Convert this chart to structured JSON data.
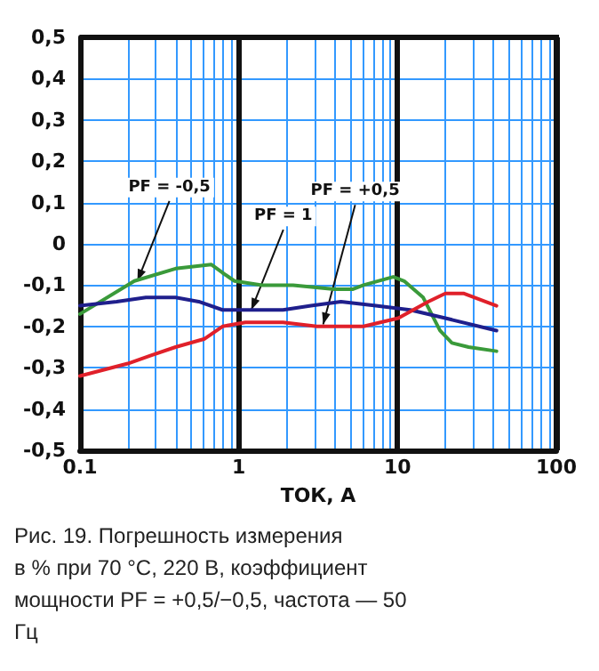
{
  "chart_data": {
    "type": "line",
    "xlabel": "ТОК, А",
    "log": "x",
    "grid": true,
    "marker": "none",
    "line_style": "solid",
    "xlim": [
      0.1,
      100
    ],
    "xticks": [
      0.1,
      1,
      10,
      100
    ],
    "ylim": [
      -0.5,
      0.5
    ],
    "yticks": [
      {
        "value": -0.5,
        "label": "-0,5"
      },
      {
        "value": -0.4,
        "label": "-0,4"
      },
      {
        "value": -0.3,
        "label": "-0,3"
      },
      {
        "value": -0.2,
        "label": "-0,2"
      },
      {
        "value": -0.1,
        "label": "-0,1"
      },
      0,
      {
        "value": 0.1,
        "label": "0,1"
      },
      {
        "value": 0.2,
        "label": "0,2"
      },
      {
        "value": 0.3,
        "label": "0,3"
      },
      {
        "value": 0.4,
        "label": "0,4"
      },
      {
        "value": 0.5,
        "label": "0,5"
      }
    ],
    "series": [
      {
        "color": "#3a9a3a",
        "x": [
          0.1,
          0.22,
          0.4,
          0.67,
          0.79,
          0.94,
          1.4,
          2.2,
          4.0,
          5.2,
          6.1,
          9.4,
          11,
          14.5,
          18.5,
          22,
          28,
          42
        ],
        "values": [
          -0.17,
          -0.09,
          -0.06,
          -0.05,
          -0.07,
          -0.09,
          -0.1,
          -0.1,
          -0.11,
          -0.11,
          -0.1,
          -0.08,
          -0.09,
          -0.13,
          -0.21,
          -0.24,
          -0.25,
          -0.26
        ]
      },
      {
        "color": "#1f1f8c",
        "x": [
          0.1,
          0.17,
          0.26,
          0.4,
          0.56,
          0.79,
          1.1,
          1.9,
          2.85,
          4.4,
          7.3,
          12,
          20,
          42
        ],
        "values": [
          -0.15,
          -0.14,
          -0.13,
          -0.13,
          -0.14,
          -0.16,
          -0.16,
          -0.16,
          -0.15,
          -0.14,
          -0.15,
          -0.16,
          -0.18,
          -0.21
        ]
      },
      {
        "color": "#e0202a",
        "x": [
          0.1,
          0.2,
          0.28,
          0.4,
          0.61,
          0.79,
          1.1,
          1.9,
          3.1,
          4.4,
          6.1,
          10.1,
          15.6,
          20,
          26,
          42
        ],
        "values": [
          -0.32,
          -0.29,
          -0.27,
          -0.25,
          -0.23,
          -0.2,
          -0.19,
          -0.19,
          -0.2,
          -0.2,
          -0.2,
          -0.18,
          -0.14,
          -0.12,
          -0.12,
          -0.15
        ]
      }
    ],
    "annotations": [
      {
        "text": "PF = -0,5",
        "x": 0.23,
        "y": -0.09
      },
      {
        "text": "PF = 1",
        "x": 1.2,
        "y": -0.16
      },
      {
        "text": "PF = +0,5",
        "x": 3.4,
        "y": -0.195
      },
      "Рис. 19. Погрешность измерения в % при 70 °C, 220 В, коэффициент мощности PF = +0,5/−0,5, частота — 50 Гц"
    ]
  }
}
